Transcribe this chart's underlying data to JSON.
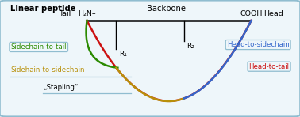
{
  "title": "Linear peptide",
  "backbone_label": "Backbone",
  "h2n_label": "H₂N–",
  "cooh_label": "COOH",
  "tail_label": "Tail",
  "head_label": "Head",
  "r1_label": "R₁",
  "r2_label": "R₂",
  "sidechain_to_tail": "Sidechain-to-tail",
  "sidechain_to_sidechain": "Sidehain-to-sidechain",
  "stapling": "„Stapling“",
  "head_to_sidechain": "Head-to-sidechain",
  "head_to_tail": "Head-to-tail",
  "color_green": "#2a8a00",
  "color_red": "#cc1111",
  "color_gold": "#b8900a",
  "color_blue": "#3366cc",
  "color_border": "#90bdd0",
  "background": "#eef6fa",
  "bx_s": 0.285,
  "bx_e": 0.845,
  "by": 0.83,
  "r1x": 0.385,
  "r2x": 0.615,
  "green_depth": 0.52,
  "red_depth": 0.13,
  "gold_depth": 0.3,
  "blue_depth": 0.25
}
